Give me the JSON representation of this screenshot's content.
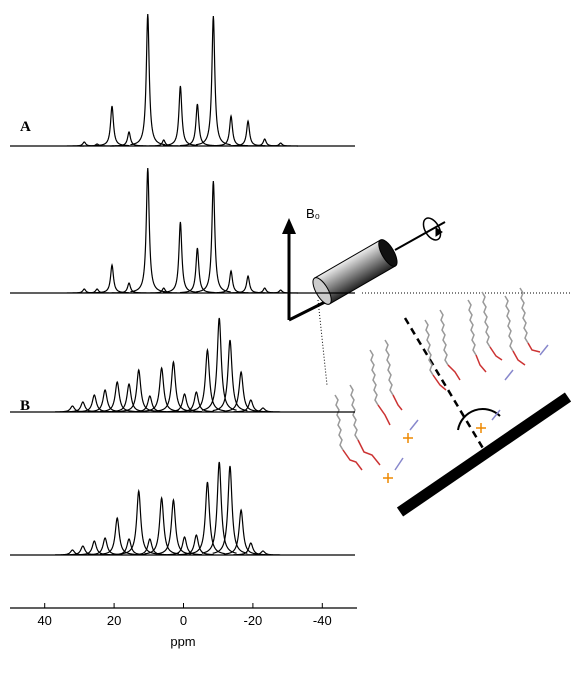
{
  "chart_data": {
    "type": "spectrum",
    "x_label": "ppm",
    "xlim": [
      50,
      -50
    ],
    "xticks": [
      40,
      20,
      0,
      -20,
      -40
    ],
    "panel_labels": [
      "A",
      "B"
    ],
    "color": "#000000",
    "series": [
      {
        "positions": [
          28.6,
          24.9,
          20.6,
          15.7,
          10.3,
          5.7,
          0.9,
          -4,
          -8.6,
          -13.7,
          -18.6,
          -23.4,
          -28
        ],
        "heights": [
          4,
          2,
          40,
          14,
          132,
          6,
          60,
          42,
          130,
          30,
          25,
          7,
          3
        ]
      },
      {
        "positions": [
          28.6,
          24.9,
          20.6,
          15.7,
          10.3,
          5.7,
          0.9,
          -4,
          -8.6,
          -13.7,
          -18.6,
          -23.4,
          -28
        ],
        "heights": [
          4,
          4,
          28,
          10,
          125,
          5,
          71,
          45,
          112,
          22,
          17,
          5,
          3
        ]
      },
      {
        "positions": [
          32,
          29,
          25.7,
          22.6,
          19.1,
          15.7,
          12.9,
          9.7,
          6.3,
          2.9,
          -0.3,
          -3.7,
          -6.9,
          -10.3,
          -13.4,
          -16.6,
          -19.4,
          -22.9
        ],
        "heights": [
          6,
          10,
          17,
          22,
          30,
          28,
          42,
          16,
          44,
          50,
          18,
          20,
          62,
          94,
          72,
          40,
          12,
          4
        ]
      },
      {
        "positions": [
          32,
          29,
          25.7,
          22.6,
          19.1,
          15.7,
          12.9,
          9.7,
          6.3,
          2.9,
          -0.3,
          -3.7,
          -6.9,
          -10.3,
          -13.4,
          -16.6,
          -19.4,
          -22.9
        ],
        "heights": [
          5,
          9,
          14,
          17,
          37,
          16,
          64,
          16,
          57,
          55,
          18,
          20,
          73,
          93,
          89,
          45,
          12,
          4
        ]
      }
    ]
  },
  "diagram": {
    "field_label": "B₀"
  }
}
